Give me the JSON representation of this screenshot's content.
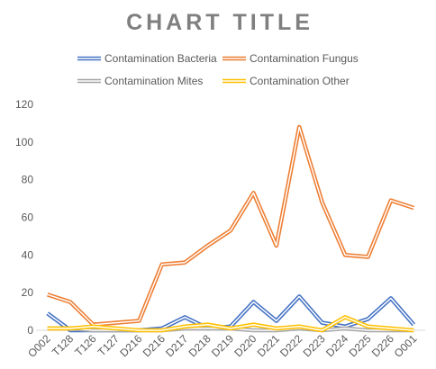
{
  "chart_data": {
    "type": "line",
    "title": "CHART TITLE",
    "categories": [
      "O002",
      "T128",
      "T126",
      "T127",
      "D216",
      "D216",
      "D217",
      "D218",
      "D219",
      "D220",
      "D221",
      "D222",
      "D223",
      "D224",
      "D225",
      "D226",
      "O001"
    ],
    "series": [
      {
        "name": "Contamination Bacteria",
        "color": "#4472C4",
        "values": [
          9,
          0,
          0,
          0,
          0,
          1,
          7,
          1,
          2,
          15,
          5,
          18,
          4,
          2,
          6,
          17,
          3
        ]
      },
      {
        "name": "Contamination Fungus",
        "color": "#ED7D31",
        "values": [
          19,
          15,
          3,
          4,
          5,
          35,
          36,
          45,
          53,
          73,
          45,
          108,
          68,
          40,
          39,
          69,
          65
        ]
      },
      {
        "name": "Contamination Mites",
        "color": "#A5A5A5",
        "values": [
          1,
          1,
          0,
          0,
          0,
          0,
          1,
          1,
          1,
          0,
          0,
          1,
          0,
          1,
          0,
          0,
          0
        ]
      },
      {
        "name": "Contamination Other",
        "color": "#FFC000",
        "values": [
          1,
          1,
          2,
          1,
          0,
          0,
          2,
          3,
          1,
          3,
          1,
          2,
          0,
          7,
          2,
          1,
          0
        ]
      }
    ],
    "ylim": [
      0,
      120
    ],
    "yticks": [
      0,
      20,
      40,
      60,
      80,
      100,
      120
    ],
    "grid": false,
    "legend": "top",
    "colors": {
      "title": "#7F7F7F",
      "text": "#595959",
      "axis": "#D9D9D9"
    }
  }
}
